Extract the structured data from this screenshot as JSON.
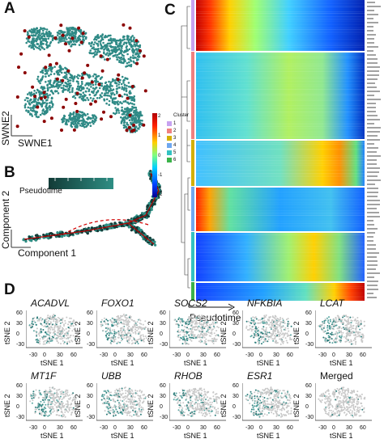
{
  "panels": {
    "a": "A",
    "b": "B",
    "c": "C",
    "d": "D"
  },
  "panel_a": {
    "xlabel": "SWNE1",
    "ylabel": "SWNE2"
  },
  "panel_b": {
    "legend_title": "Pseudotime",
    "xlabel": "Component 1",
    "ylabel": "Component 2"
  },
  "panel_c": {
    "colorbar_ticks": [
      "2",
      "1",
      "0",
      "-1",
      "-2"
    ],
    "cluster_legend_title": "Cluster",
    "clusters": [
      {
        "label": "1",
        "color": "#c7a2f0"
      },
      {
        "label": "2",
        "color": "#f08080"
      },
      {
        "label": "3",
        "color": "#d4b000"
      },
      {
        "label": "4",
        "color": "#6fa8f0"
      },
      {
        "label": "5",
        "color": "#33c2c2"
      },
      {
        "label": "6",
        "color": "#3bb34a"
      }
    ],
    "xlabel": "Pseudotime"
  },
  "panel_d": {
    "genes_row1": [
      "ACADVL",
      "FOXO1",
      "SOCS2",
      "NFKBIA",
      "LCAT"
    ],
    "genes_row2": [
      "MT1F",
      "UBB",
      "RHOB",
      "ESR1",
      "Merged"
    ],
    "xlabel": "tSNE 1",
    "ylabel": "tSNE 2",
    "xticks": [
      "-30",
      "0",
      "30",
      "60"
    ],
    "yticks": [
      "60",
      "30",
      "0",
      "-30"
    ]
  }
}
